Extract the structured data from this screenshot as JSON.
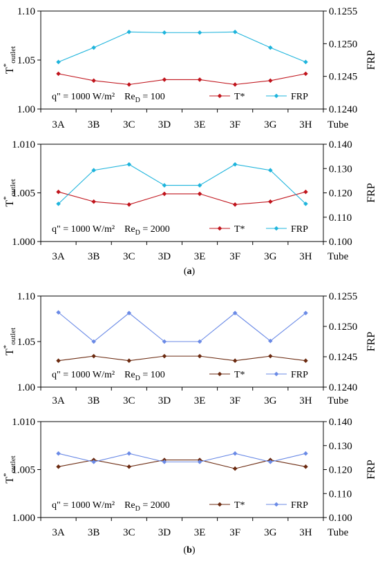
{
  "figure": {
    "panel_labels": [
      "(a)",
      "(b)"
    ],
    "x_axis_end_label": "Tube"
  },
  "chart_data": [
    {
      "type": "line",
      "panel": "a",
      "categories": [
        "3A",
        "3B",
        "3C",
        "3D",
        "3E",
        "3F",
        "3G",
        "3H"
      ],
      "ylabel_left": {
        "main": "T",
        "sup": "*",
        "sub": "outlet"
      },
      "ylabel_right": "FRP",
      "ylim_left": [
        1.0,
        1.1
      ],
      "yticks_left": [
        "1.00",
        "1.05",
        "1.10"
      ],
      "ylim_right": [
        0.124,
        0.1255
      ],
      "yticks_right": [
        "0.1240",
        "0.1245",
        "0.1250",
        "0.1255"
      ],
      "annotation": {
        "flux": "q\" = 1000 W/m²",
        "re_main": "Re",
        "re_sub": "D",
        "re_val": " = 100"
      },
      "legend_position": "bottom-right",
      "series": [
        {
          "name": "T*",
          "axis": "left",
          "color": "#c0141c",
          "values": [
            1.036,
            1.029,
            1.025,
            1.03,
            1.03,
            1.025,
            1.029,
            1.036
          ]
        },
        {
          "name": "FRP",
          "axis": "right",
          "color": "#1eb4dc",
          "values": [
            0.12472,
            0.12494,
            0.12518,
            0.12517,
            0.12517,
            0.12518,
            0.12494,
            0.12472
          ]
        }
      ]
    },
    {
      "type": "line",
      "panel": "a",
      "categories": [
        "3A",
        "3B",
        "3C",
        "3D",
        "3E",
        "3F",
        "3G",
        "3H"
      ],
      "ylabel_left": {
        "main": "T",
        "sup": "*",
        "sub": "outlet"
      },
      "ylabel_right": "FRP",
      "ylim_left": [
        1.0,
        1.01
      ],
      "yticks_left": [
        "1.000",
        "1.005",
        "1.010"
      ],
      "ylim_right": [
        0.1,
        0.14
      ],
      "yticks_right": [
        "0.100",
        "0.110",
        "0.120",
        "0.130",
        "0.140"
      ],
      "annotation": {
        "flux": "q\" = 1000 W/m²",
        "re_main": "Re",
        "re_sub": "D",
        "re_val": " = 2000"
      },
      "legend_position": "bottom-right",
      "series": [
        {
          "name": "T*",
          "axis": "left",
          "color": "#c0141c",
          "values": [
            1.0051,
            1.0041,
            1.0038,
            1.0049,
            1.0049,
            1.0038,
            1.0041,
            1.0051
          ]
        },
        {
          "name": "FRP",
          "axis": "right",
          "color": "#1eb4dc",
          "values": [
            0.1155,
            0.1293,
            0.1317,
            0.1231,
            0.1231,
            0.1317,
            0.1293,
            0.1155
          ]
        }
      ]
    },
    {
      "type": "line",
      "panel": "b",
      "categories": [
        "3A",
        "3B",
        "3C",
        "3D",
        "3E",
        "3F",
        "3G",
        "3H"
      ],
      "ylabel_left": {
        "main": "T",
        "sup": "*",
        "sub": "outlet"
      },
      "ylabel_right": "FRP",
      "ylim_left": [
        1.0,
        1.1
      ],
      "yticks_left": [
        "1.00",
        "1.05",
        "1.10"
      ],
      "ylim_right": [
        0.124,
        0.1255
      ],
      "yticks_right": [
        "0.1240",
        "0.1245",
        "0.1250",
        "0.1255"
      ],
      "annotation": {
        "flux": "q\" = 1000 W/m²",
        "re_main": "Re",
        "re_sub": "D",
        "re_val": " = 100"
      },
      "legend_position": "bottom-right",
      "series": [
        {
          "name": "T*",
          "axis": "left",
          "color": "#6b2a10",
          "values": [
            1.029,
            1.034,
            1.029,
            1.034,
            1.034,
            1.029,
            1.034,
            1.029
          ]
        },
        {
          "name": "FRP",
          "axis": "right",
          "color": "#6a8ae6",
          "values": [
            0.12523,
            0.12475,
            0.12522,
            0.12475,
            0.12475,
            0.12522,
            0.12476,
            0.12522
          ]
        }
      ]
    },
    {
      "type": "line",
      "panel": "b",
      "categories": [
        "3A",
        "3B",
        "3C",
        "3D",
        "3E",
        "3F",
        "3G",
        "3H"
      ],
      "ylabel_left": {
        "main": "T",
        "sup": "*",
        "sub": "outlet"
      },
      "ylabel_right": "FRP",
      "ylim_left": [
        1.0,
        1.01
      ],
      "yticks_left": [
        "1.000",
        "1.005",
        "1.010"
      ],
      "ylim_right": [
        0.1,
        0.14
      ],
      "yticks_right": [
        "0.100",
        "0.110",
        "0.120",
        "0.130",
        "0.140"
      ],
      "annotation": {
        "flux": "q\" = 1000 W/m²",
        "re_main": "Re",
        "re_sub": "D",
        "re_val": " = 2000"
      },
      "legend_position": "bottom-right",
      "series": [
        {
          "name": "T*",
          "axis": "left",
          "color": "#6b2a10",
          "values": [
            1.0053,
            1.006,
            1.0053,
            1.006,
            1.006,
            1.0051,
            1.006,
            1.0053
          ]
        },
        {
          "name": "FRP",
          "axis": "right",
          "color": "#6a8ae6",
          "values": [
            0.1267,
            0.1232,
            0.1267,
            0.1232,
            0.1232,
            0.1267,
            0.1232,
            0.1267
          ]
        }
      ]
    }
  ]
}
